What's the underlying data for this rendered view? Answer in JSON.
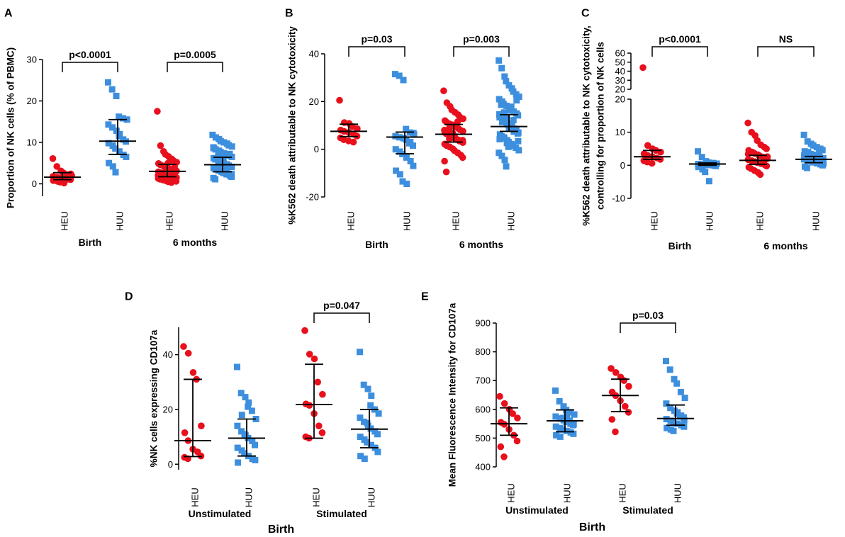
{
  "colors": {
    "HEU": "#e8101c",
    "HUU": "#3d8fde",
    "axis": "#000000"
  },
  "icons": {
    "HEU": "circle-marker",
    "HUU": "square-marker"
  },
  "chart_data": [
    {
      "type": "scatter",
      "panel": "A",
      "ylabel": "Proportion of NK cells (% of PBMC)",
      "ylim": [
        -3,
        30
      ],
      "yticks": [
        0,
        10,
        20,
        30
      ],
      "categories": [
        "HEU",
        "HUU",
        "HEU",
        "HUU"
      ],
      "groups": [
        {
          "label": "Birth",
          "span": [
            0,
            1
          ]
        },
        {
          "label": "6 months",
          "span": [
            2,
            3
          ]
        }
      ],
      "series": [
        {
          "name": "HEU",
          "cat": 0,
          "values": [
            6.1,
            4.2,
            3.1,
            2.6,
            2.2,
            2.0,
            1.8,
            1.6,
            1.5,
            1.3,
            1.1,
            1.0,
            0.8,
            0.6,
            0.4,
            0.2,
            1.4,
            2.4
          ],
          "median": 1.6,
          "q1": 1.0,
          "q3": 2.7
        },
        {
          "name": "HUU",
          "cat": 1,
          "values": [
            24.5,
            22.8,
            21.2,
            16.2,
            15.8,
            15.5,
            14.3,
            13.6,
            12.8,
            11.5,
            10.7,
            10.2,
            9.8,
            9.2,
            8.5,
            7.8,
            7.0,
            6.5,
            5.0,
            4.2,
            2.8,
            12.0
          ],
          "median": 10.3,
          "q1": 7.1,
          "q3": 15.5
        },
        {
          "name": "HEU",
          "cat": 2,
          "values": [
            17.5,
            9.2,
            7.8,
            7.1,
            6.6,
            6.0,
            5.6,
            5.2,
            4.9,
            4.6,
            4.3,
            4.0,
            3.7,
            3.5,
            3.3,
            3.1,
            2.9,
            2.7,
            2.5,
            2.3,
            2.1,
            1.9,
            1.7,
            1.5,
            1.3,
            1.1,
            0.9,
            0.7,
            0.5,
            0.3,
            4.1,
            3.0,
            2.0,
            1.2,
            2.6,
            3.6,
            5.0,
            1.6,
            2.4,
            0.6
          ],
          "median": 3.0,
          "q1": 1.7,
          "q3": 4.7
        },
        {
          "name": "HUU",
          "cat": 3,
          "values": [
            11.8,
            11.2,
            10.8,
            10.3,
            10.0,
            9.7,
            9.3,
            9.0,
            8.6,
            8.3,
            8.0,
            7.7,
            7.4,
            7.1,
            6.8,
            6.5,
            6.2,
            5.9,
            5.6,
            5.3,
            5.0,
            4.7,
            4.4,
            4.1,
            3.8,
            3.5,
            3.2,
            2.9,
            2.6,
            2.3,
            2.0,
            1.7,
            1.4,
            1.1,
            4.6,
            5.2,
            6.1,
            3.3,
            7.2,
            2.4,
            8.8,
            4.0,
            6.7,
            3.7,
            5.8
          ],
          "median": 4.6,
          "q1": 2.9,
          "q3": 6.4
        }
      ],
      "brackets": [
        {
          "from": 0,
          "to": 1,
          "label": "p<0.0001"
        },
        {
          "from": 2,
          "to": 3,
          "label": "p=0.0005"
        }
      ]
    },
    {
      "type": "scatter",
      "panel": "B",
      "ylabel": "%K562 death attributable to NK cytotoxicity",
      "ylim": [
        -20,
        40
      ],
      "yticks": [
        -20,
        0,
        20,
        40
      ],
      "categories": [
        "HEU",
        "HUU",
        "HEU",
        "HUU"
      ],
      "groups": [
        {
          "label": "Birth",
          "span": [
            0,
            1
          ]
        },
        {
          "label": "6 months",
          "span": [
            2,
            3
          ]
        }
      ],
      "series": [
        {
          "name": "HEU",
          "cat": 0,
          "values": [
            20.5,
            11.2,
            10.8,
            9.5,
            8.6,
            8.0,
            7.5,
            7.0,
            6.3,
            5.5,
            4.8,
            4.0,
            3.5,
            3.0
          ],
          "median": 7.5,
          "q1": 5.3,
          "q3": 10.5
        },
        {
          "name": "HUU",
          "cat": 1,
          "values": [
            31.5,
            30.8,
            29.0,
            8.5,
            7.0,
            6.2,
            5.5,
            5.0,
            4.6,
            4.0,
            3.0,
            1.5,
            0.0,
            -1.0,
            -2.0,
            -3.5,
            -5.0,
            -7.0,
            -9.0,
            -10.5,
            -13.5,
            -14.5,
            2.5,
            6.8
          ],
          "median": 5.1,
          "q1": -1.9,
          "q3": 7.2
        },
        {
          "name": "HEU",
          "cat": 2,
          "values": [
            24.5,
            19.5,
            18.0,
            16.5,
            15.5,
            14.5,
            13.5,
            12.8,
            12.0,
            11.3,
            10.6,
            10.0,
            9.4,
            8.8,
            8.2,
            7.6,
            7.0,
            6.4,
            5.8,
            5.2,
            4.6,
            4.0,
            3.4,
            2.8,
            2.2,
            1.6,
            1.0,
            0.2,
            -0.6,
            -1.5,
            -2.5,
            -3.5,
            -5.0,
            -9.5,
            9.0,
            6.8,
            5.5,
            11.5,
            13.0,
            3.8,
            8.0,
            7.3,
            4.3,
            10.2
          ],
          "median": 6.3,
          "q1": 3.0,
          "q3": 10.4
        },
        {
          "name": "HUU",
          "cat": 3,
          "values": [
            37.2,
            34.0,
            30.5,
            28.5,
            26.8,
            25.5,
            24.2,
            23.0,
            22.0,
            21.0,
            20.0,
            19.0,
            18.2,
            17.4,
            16.6,
            15.8,
            15.0,
            14.2,
            13.4,
            12.6,
            11.8,
            11.0,
            10.2,
            9.4,
            8.6,
            7.8,
            7.0,
            6.2,
            5.4,
            4.6,
            3.8,
            3.0,
            2.2,
            1.4,
            0.6,
            -0.4,
            -1.5,
            -2.8,
            -4.5,
            -7.2,
            9.0,
            10.6,
            12.2,
            8.2,
            6.6,
            14.6,
            11.4,
            5.0,
            13.0,
            16.2,
            9.8,
            7.4,
            20.5,
            3.4,
            4.2,
            18.6,
            15.4,
            2.6,
            1.0,
            17.8
          ],
          "median": 9.5,
          "q1": 7.5,
          "q3": 14.5
        }
      ],
      "brackets": [
        {
          "from": 0,
          "to": 1,
          "label": "p=0.03"
        },
        {
          "from": 2,
          "to": 3,
          "label": "p=0.003"
        }
      ]
    },
    {
      "type": "scatter",
      "panel": "C",
      "ylabel_lines": [
        "%K562 death attributable to NK cytotoxicity,",
        "controlling for proportion of NK cells"
      ],
      "axis_break": {
        "lower": {
          "ylim": [
            -10,
            20
          ],
          "yticks": [
            -10,
            0,
            10,
            20
          ]
        },
        "upper": {
          "ylim": [
            20,
            60
          ],
          "yticks": [
            20,
            30,
            40,
            50,
            60
          ]
        }
      },
      "categories": [
        "HEU",
        "HUU",
        "HEU",
        "HUU"
      ],
      "groups": [
        {
          "label": "Birth",
          "span": [
            0,
            1
          ]
        },
        {
          "label": "6 months",
          "span": [
            2,
            3
          ]
        }
      ],
      "series": [
        {
          "name": "HEU",
          "cat": 0,
          "values": [
            44,
            6.0,
            5.0,
            4.5,
            4.0,
            3.5,
            3.0,
            2.6,
            2.2,
            1.8,
            1.4,
            1.0,
            0.6
          ],
          "median": 2.6,
          "q1": 1.8,
          "q3": 4.5
        },
        {
          "name": "HUU",
          "cat": 1,
          "values": [
            4.2,
            2.5,
            1.2,
            0.8,
            0.6,
            0.5,
            0.4,
            0.3,
            0.2,
            0.1,
            0.0,
            -0.2,
            -0.5,
            -1.2,
            -2.0,
            -4.8,
            0.7
          ],
          "median": 0.4,
          "q1": 0.0,
          "q3": 0.7
        },
        {
          "name": "HEU",
          "cat": 2,
          "values": [
            12.8,
            10.0,
            9.0,
            7.5,
            6.2,
            5.5,
            5.0,
            4.5,
            4.0,
            3.6,
            3.2,
            2.8,
            2.4,
            2.0,
            1.7,
            1.4,
            1.1,
            0.8,
            0.5,
            0.2,
            -0.2,
            -0.6,
            -1.0,
            -1.6,
            -2.2,
            -2.8,
            1.3,
            2.6,
            3.4
          ],
          "median": 1.5,
          "q1": 0.3,
          "q3": 3.0
        },
        {
          "name": "HUU",
          "cat": 3,
          "values": [
            9.2,
            7.2,
            6.5,
            6.0,
            5.5,
            5.0,
            4.6,
            4.2,
            3.8,
            3.4,
            3.0,
            2.7,
            2.4,
            2.1,
            1.8,
            1.5,
            1.2,
            0.9,
            0.6,
            0.3,
            0.0,
            -0.4,
            -0.8,
            1.7,
            2.2,
            3.2,
            1.0,
            0.5,
            2.9,
            4.0,
            1.4,
            2.0,
            0.8,
            3.6
          ],
          "median": 1.8,
          "q1": 0.8,
          "q3": 2.7
        }
      ],
      "brackets": [
        {
          "from": 0,
          "to": 1,
          "label": "p<0.0001"
        },
        {
          "from": 2,
          "to": 3,
          "label": "NS"
        }
      ]
    },
    {
      "type": "scatter",
      "panel": "D",
      "ylabel": "%NK cells expressing CD107a",
      "ylim": [
        -2,
        50
      ],
      "yticks": [
        0,
        20,
        40
      ],
      "categories": [
        "HEU",
        "HUU",
        "HEU",
        "HUU"
      ],
      "groups": [
        {
          "label": "Unstimulated",
          "span": [
            0,
            1
          ]
        },
        {
          "label": "Stimulated",
          "span": [
            2,
            3
          ]
        }
      ],
      "super_label": "Birth",
      "series": [
        {
          "name": "HEU",
          "cat": 0,
          "values": [
            43.0,
            40.5,
            33.5,
            31.0,
            14.0,
            11.5,
            8.6,
            5.5,
            4.5,
            3.0,
            2.5,
            2.0
          ],
          "median": 8.6,
          "q1": 2.8,
          "q3": 31.0
        },
        {
          "name": "HUU",
          "cat": 1,
          "values": [
            35.5,
            26.0,
            24.5,
            21.0,
            19.5,
            16.5,
            14.0,
            12.0,
            10.5,
            9.5,
            8.5,
            7.0,
            6.0,
            5.0,
            4.0,
            3.0,
            2.0,
            1.5,
            0.6,
            18.0,
            11.0,
            22.5
          ],
          "median": 9.5,
          "q1": 3.0,
          "q3": 16.5
        },
        {
          "name": "HEU",
          "cat": 2,
          "values": [
            48.8,
            40.2,
            38.5,
            30.0,
            25.5,
            22.0,
            21.5,
            18.5,
            14.0,
            11.5,
            10.0,
            9.5
          ],
          "median": 21.8,
          "q1": 9.5,
          "q3": 36.5
        },
        {
          "name": "HUU",
          "cat": 3,
          "values": [
            41.0,
            29.0,
            27.5,
            21.5,
            20.0,
            18.5,
            17.0,
            15.5,
            14.0,
            13.0,
            12.0,
            11.0,
            10.0,
            9.0,
            8.0,
            7.0,
            6.0,
            4.5,
            3.0,
            2.0,
            15.0,
            25.0
          ],
          "median": 12.8,
          "q1": 6.0,
          "q3": 20.0
        }
      ],
      "brackets": [
        {
          "from": 2,
          "to": 3,
          "label": "p=0.047"
        }
      ]
    },
    {
      "type": "scatter",
      "panel": "E",
      "ylabel": "Mean Fluorescence Intensity for CD107a",
      "ylim": [
        400,
        900
      ],
      "yticks": [
        400,
        500,
        600,
        700,
        800,
        900
      ],
      "categories": [
        "HEU",
        "HUU",
        "HEU",
        "HUU"
      ],
      "groups": [
        {
          "label": "Unstimulated",
          "span": [
            0,
            1
          ]
        },
        {
          "label": "Stimulated",
          "span": [
            2,
            3
          ]
        }
      ],
      "super_label": "Birth",
      "series": [
        {
          "name": "HEU",
          "cat": 0,
          "values": [
            645,
            620,
            600,
            585,
            570,
            555,
            548,
            530,
            510,
            490,
            470,
            435
          ],
          "median": 550,
          "q1": 510,
          "q3": 605
        },
        {
          "name": "HUU",
          "cat": 1,
          "values": [
            665,
            628,
            610,
            598,
            590,
            582,
            575,
            568,
            562,
            556,
            550,
            545,
            540,
            535,
            530,
            525,
            520,
            515,
            510,
            505,
            570,
            580,
            560,
            548
          ],
          "median": 560,
          "q1": 522,
          "q3": 598
        },
        {
          "name": "HEU",
          "cat": 2,
          "values": [
            742,
            728,
            712,
            700,
            680,
            660,
            648,
            630,
            610,
            590,
            565,
            522
          ],
          "median": 648,
          "q1": 592,
          "q3": 705
        },
        {
          "name": "HUU",
          "cat": 3,
          "values": [
            768,
            738,
            705,
            690,
            660,
            640,
            620,
            605,
            595,
            585,
            578,
            572,
            566,
            560,
            555,
            550,
            545,
            540,
            535,
            530,
            525,
            590,
            575,
            562
          ],
          "median": 568,
          "q1": 545,
          "q3": 615
        }
      ],
      "brackets": [
        {
          "from": 2,
          "to": 3,
          "label": "p=0.03"
        }
      ]
    }
  ]
}
